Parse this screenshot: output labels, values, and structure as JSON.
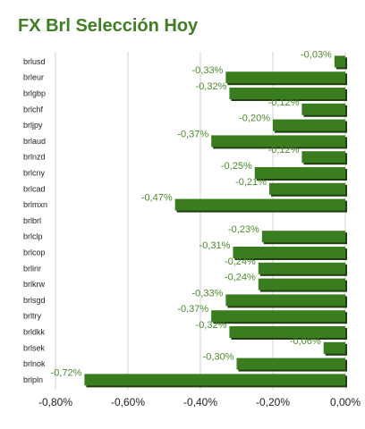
{
  "chart_data": {
    "type": "bar",
    "orientation": "horizontal",
    "title": "FX Brl Selección Hoy",
    "categories": [
      "brlusd",
      "brleur",
      "brlgbp",
      "brlchf",
      "brljpy",
      "brlaud",
      "brlnzd",
      "brlcny",
      "brlcad",
      "brlmxn",
      "brlbrl",
      "brlclp",
      "brlcop",
      "brlinr",
      "brlkrw",
      "brlsgd",
      "brltry",
      "brldkk",
      "brlsek",
      "brlnok",
      "brlpln"
    ],
    "values": [
      -0.03,
      -0.33,
      -0.32,
      -0.12,
      -0.2,
      -0.37,
      -0.12,
      -0.25,
      -0.21,
      -0.47,
      null,
      -0.23,
      -0.31,
      -0.24,
      -0.24,
      -0.33,
      -0.37,
      -0.32,
      -0.06,
      -0.3,
      -0.72
    ],
    "value_labels": [
      "-0,03%",
      "-0,33%",
      "-0,32%",
      "-0,12%",
      "-0,20%",
      "-0,37%",
      "-0,12%",
      "-0,25%",
      "-0,21%",
      "-0,47%",
      "",
      "-0,23%",
      "-0,31%",
      "-0,24%",
      "-0,24%",
      "-0,33%",
      "-0,37%",
      "-0,32%",
      "-0,06%",
      "-0,30%",
      "-0,72%"
    ],
    "xlim": [
      -0.8,
      0.0
    ],
    "xticks": [
      -0.8,
      -0.6,
      -0.4,
      -0.2,
      0.0
    ],
    "xtick_labels": [
      "-0,80%",
      "-0,60%",
      "-0,40%",
      "-0,20%",
      "0,00%"
    ],
    "grid": true,
    "legend": "none",
    "colors": {
      "title": "#3f7f22",
      "bar": "#3a7d1f",
      "bar_shadow": "#1f3f10",
      "value_label": "#4a8a2a",
      "gridline": "#d0d0d0",
      "axis_text": "#222222"
    }
  }
}
